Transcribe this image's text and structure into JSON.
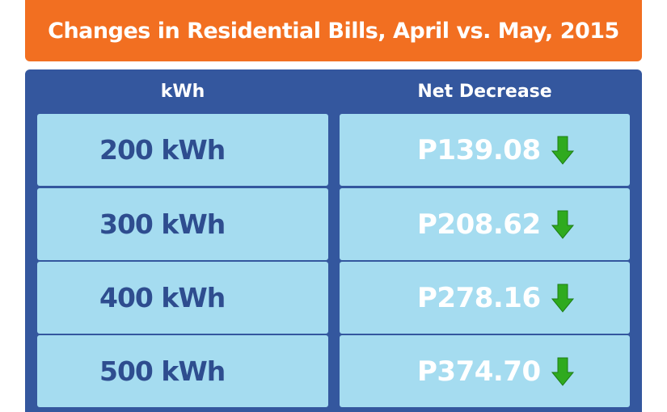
{
  "chart_data": {
    "type": "table",
    "title": "Changes in Residential Bills, April vs. May, 2015",
    "columns": [
      "kWh",
      "Net Decrease"
    ],
    "rows": [
      {
        "kwh": "200 kWh",
        "net_decrease": "P139.08",
        "direction": "down"
      },
      {
        "kwh": "300 kWh",
        "net_decrease": "P208.62",
        "direction": "down"
      },
      {
        "kwh": "400 kWh",
        "net_decrease": "P278.16",
        "direction": "down"
      },
      {
        "kwh": "500 kWh",
        "net_decrease": "P374.70",
        "direction": "down"
      }
    ]
  },
  "icons": {
    "decrease": "down-arrow-icon"
  },
  "colors": {
    "header_bg": "#f26f21",
    "panel_bg": "#34579e",
    "cell_bg": "#a5dcf0",
    "kwh_text": "#2e4d8f",
    "value_text": "#ffffff",
    "arrow": "#2faa1f"
  }
}
